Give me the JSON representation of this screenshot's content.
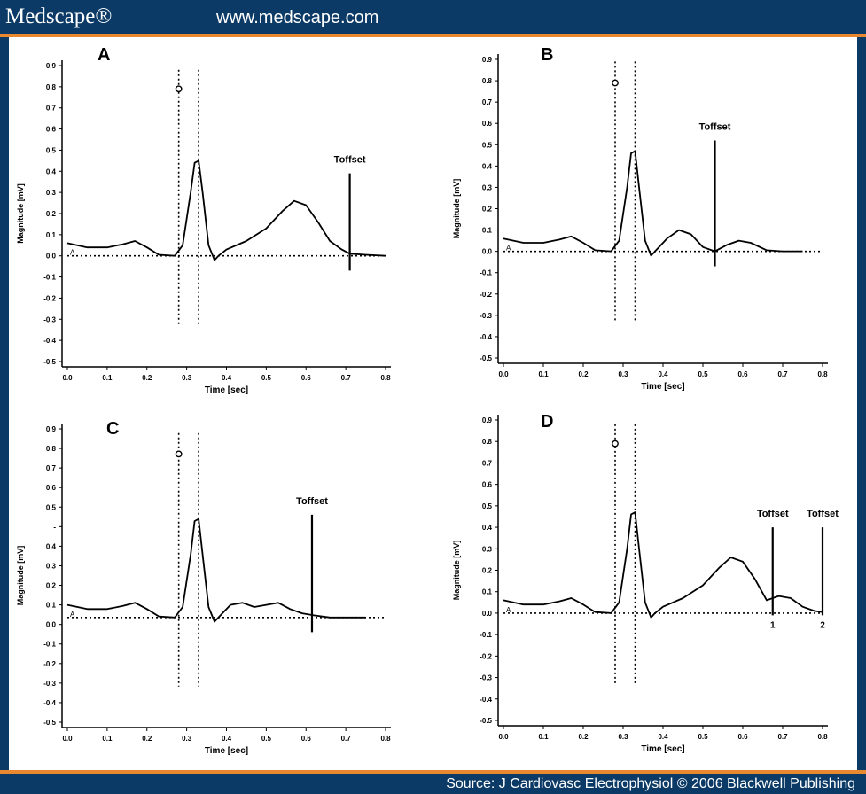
{
  "header": {
    "logo": "Medscape®",
    "url": "www.medscape.com"
  },
  "footer": {
    "source": "Source: J Cardiovasc Electrophysiol © 2006 Blackwell Publishing"
  },
  "colors": {
    "frame": "#0b3a66",
    "accent": "#e8892f",
    "ink": "#000000"
  },
  "chart_data": [
    {
      "panel": "A",
      "type": "line",
      "ylabel": "Magnitude [mV]",
      "xlabel": "Time [sec]",
      "xlim": [
        0,
        0.8
      ],
      "ylim": [
        -0.5,
        0.9
      ],
      "xticks": [
        "0.0",
        "0.1",
        "0.2",
        "0.3",
        "0.4",
        "0.5",
        "0.6",
        "0.7",
        "0.8"
      ],
      "yticks": [
        "0.9",
        "0.8",
        "0.7",
        "0.6",
        "0.5",
        "0.4",
        "0.3",
        "0.2",
        "0.1",
        "0.0",
        "-0.1",
        "-0.2",
        "-0.3",
        "-0.4",
        "-0.5"
      ],
      "x": [
        0.0,
        0.05,
        0.1,
        0.14,
        0.17,
        0.2,
        0.23,
        0.27,
        0.29,
        0.31,
        0.32,
        0.33,
        0.34,
        0.355,
        0.37,
        0.38,
        0.4,
        0.45,
        0.5,
        0.54,
        0.57,
        0.6,
        0.63,
        0.66,
        0.69,
        0.71,
        0.75,
        0.8
      ],
      "y": [
        0.06,
        0.04,
        0.04,
        0.055,
        0.07,
        0.04,
        0.005,
        0.0,
        0.05,
        0.3,
        0.44,
        0.45,
        0.3,
        0.05,
        -0.02,
        0.0,
        0.03,
        0.07,
        0.13,
        0.21,
        0.26,
        0.24,
        0.16,
        0.07,
        0.03,
        0.01,
        0.005,
        0.0
      ],
      "baseline_y": 0.0,
      "baseline_label": "A",
      "vlines": [
        0.28,
        0.33
      ],
      "vline_range": [
        -0.33,
        0.88
      ],
      "circle": {
        "x": 0.28,
        "y": 0.79
      },
      "markers": [
        {
          "x": 0.71,
          "y_range": [
            -0.07,
            0.39
          ],
          "label": "Toffset"
        }
      ]
    },
    {
      "panel": "B",
      "type": "line",
      "ylabel": "Magnitude [mV]",
      "xlabel": "Time [sec]",
      "xlim": [
        0,
        0.8
      ],
      "ylim": [
        -0.5,
        0.9
      ],
      "xticks": [
        "0.0",
        "0.1",
        "0.2",
        "0.3",
        "0.4",
        "0.5",
        "0.6",
        "0.7",
        "0.8"
      ],
      "yticks": [
        "0.9",
        "0.8",
        "0.7",
        "0.6",
        "0.5",
        "0.4",
        "0.3",
        "0.2",
        "0.1",
        "0.0",
        "-0.1",
        "-0.2",
        "-0.3",
        "-0.4",
        "-0.5"
      ],
      "x": [
        0.0,
        0.05,
        0.1,
        0.14,
        0.17,
        0.2,
        0.23,
        0.27,
        0.29,
        0.31,
        0.32,
        0.33,
        0.34,
        0.355,
        0.37,
        0.38,
        0.41,
        0.44,
        0.47,
        0.5,
        0.53,
        0.56,
        0.59,
        0.62,
        0.66,
        0.7,
        0.75
      ],
      "y": [
        0.06,
        0.04,
        0.04,
        0.055,
        0.07,
        0.04,
        0.005,
        0.0,
        0.05,
        0.3,
        0.46,
        0.47,
        0.3,
        0.05,
        -0.02,
        0.0,
        0.06,
        0.1,
        0.08,
        0.02,
        0.0,
        0.03,
        0.05,
        0.04,
        0.005,
        0.0,
        0.0
      ],
      "baseline_y": 0.0,
      "baseline_label": "A",
      "vlines": [
        0.28,
        0.33
      ],
      "vline_range": [
        -0.33,
        0.89
      ],
      "circle": {
        "x": 0.28,
        "y": 0.79
      },
      "markers": [
        {
          "x": 0.53,
          "y_range": [
            -0.07,
            0.52
          ],
          "label": "Toffset"
        }
      ]
    },
    {
      "panel": "C",
      "type": "line",
      "ylabel": "Magnitude [mV]",
      "xlabel": "Time [sec]",
      "xlim": [
        0,
        0.8
      ],
      "ylim": [
        -0.5,
        0.9
      ],
      "xticks": [
        "0.0",
        "0.1",
        "0.2",
        "0.3",
        "0.4",
        "0.5",
        "0.6",
        "0.7",
        "0.8"
      ],
      "yticks": [
        "0.9",
        "0.8",
        "0.7",
        "0.6",
        "0.5",
        "-",
        "0.4",
        "0.3",
        "0.2",
        "0.1",
        "0.0",
        "-0.1",
        "-0.2",
        "-0.3",
        "-0.4",
        "-0.5"
      ],
      "x": [
        0.0,
        0.05,
        0.1,
        0.14,
        0.17,
        0.2,
        0.23,
        0.27,
        0.29,
        0.31,
        0.32,
        0.33,
        0.34,
        0.355,
        0.37,
        0.38,
        0.41,
        0.44,
        0.47,
        0.5,
        0.53,
        0.56,
        0.59,
        0.62,
        0.66,
        0.7,
        0.75
      ],
      "y": [
        0.06,
        0.04,
        0.04,
        0.055,
        0.07,
        0.04,
        0.005,
        0.0,
        0.05,
        0.3,
        0.46,
        0.47,
        0.3,
        0.05,
        -0.02,
        0.0,
        0.06,
        0.07,
        0.05,
        0.06,
        0.07,
        0.04,
        0.02,
        0.01,
        0.0,
        0.0,
        0.0
      ],
      "baseline_y": 0.0,
      "baseline_label": "A",
      "vlines": [
        0.28,
        0.33
      ],
      "vline_range": [
        -0.33,
        0.88
      ],
      "circle": {
        "x": 0.28,
        "y": 0.78
      },
      "markers": [
        {
          "x": 0.615,
          "y_range": [
            -0.07,
            0.49
          ],
          "label": "Toffset"
        }
      ]
    },
    {
      "panel": "D",
      "type": "line",
      "ylabel": "Magnitude [mV]",
      "xlabel": "Time [sec]",
      "xlim": [
        0,
        0.8
      ],
      "ylim": [
        -0.5,
        0.9
      ],
      "xticks": [
        "0.0",
        "0.1",
        "0.2",
        "0.3",
        "0.4",
        "0.5",
        "0.6",
        "0.7",
        "0.8"
      ],
      "yticks": [
        "0.9",
        "0.8",
        "0.7",
        "0.6",
        "0.5",
        "0.4",
        "0.3",
        "0.2",
        "0.1",
        "0.0",
        "-0.1",
        "-0.2",
        "-0.3",
        "-0.4",
        "-0.5"
      ],
      "x": [
        0.0,
        0.05,
        0.1,
        0.14,
        0.17,
        0.2,
        0.23,
        0.27,
        0.29,
        0.31,
        0.32,
        0.33,
        0.34,
        0.355,
        0.37,
        0.38,
        0.4,
        0.45,
        0.5,
        0.54,
        0.57,
        0.6,
        0.63,
        0.66,
        0.69,
        0.72,
        0.75,
        0.78,
        0.8
      ],
      "y": [
        0.06,
        0.04,
        0.04,
        0.055,
        0.07,
        0.04,
        0.005,
        0.0,
        0.05,
        0.3,
        0.46,
        0.47,
        0.3,
        0.05,
        -0.02,
        0.0,
        0.03,
        0.07,
        0.13,
        0.21,
        0.26,
        0.24,
        0.16,
        0.06,
        0.08,
        0.07,
        0.03,
        0.01,
        0.005
      ],
      "baseline_y": 0.0,
      "baseline_label": "A",
      "vlines": [
        0.28,
        0.33
      ],
      "vline_range": [
        -0.33,
        0.88
      ],
      "circle": {
        "x": 0.28,
        "y": 0.79
      },
      "markers": [
        {
          "x": 0.675,
          "y_range": [
            -0.01,
            0.4
          ],
          "label": "Toffset",
          "sub": "1"
        },
        {
          "x": 0.8,
          "y_range": [
            -0.01,
            0.4
          ],
          "label": "Toffset",
          "sub": "2"
        }
      ]
    }
  ]
}
